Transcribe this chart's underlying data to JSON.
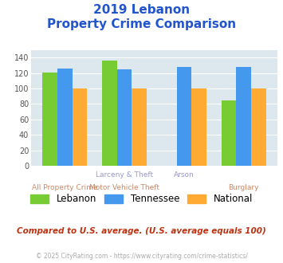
{
  "title_line1": "2019 Lebanon",
  "title_line2": "Property Crime Comparison",
  "cat_labels_row1": [
    "",
    "Larceny & Theft",
    "Arson",
    ""
  ],
  "cat_labels_row2": [
    "All Property Crime",
    "Motor Vehicle Theft",
    "",
    "Burglary"
  ],
  "lebanon": [
    121,
    136,
    0,
    85
  ],
  "tennessee": [
    126,
    125,
    128,
    128
  ],
  "national": [
    100,
    100,
    100,
    100
  ],
  "lebanon_color": "#77cc33",
  "tennessee_color": "#4499ee",
  "national_color": "#ffaa33",
  "ylim": [
    0,
    150
  ],
  "yticks": [
    0,
    20,
    40,
    60,
    80,
    100,
    120,
    140
  ],
  "legend_labels": [
    "Lebanon",
    "Tennessee",
    "National"
  ],
  "footnote1": "Compared to U.S. average. (U.S. average equals 100)",
  "footnote2": "© 2025 CityRating.com - https://www.cityrating.com/crime-statistics/",
  "title_color": "#2255cc",
  "footnote1_color": "#bb3311",
  "footnote2_color": "#aaaaaa",
  "axis_label_color_top": "#9999cc",
  "axis_label_color_bot": "#cc8866",
  "bg_color": "#dde8ee",
  "fig_bg_color": "#ffffff",
  "bar_width": 0.25
}
